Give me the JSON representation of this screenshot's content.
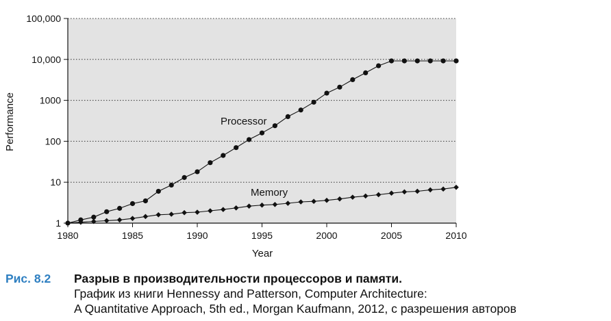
{
  "chart_data": {
    "type": "line",
    "ylabel": "Performance",
    "xlabel": "Year",
    "yscale": "log",
    "ylim": [
      1,
      100000
    ],
    "xlim": [
      1980,
      2010
    ],
    "x_ticks": [
      "1980",
      "1985",
      "1990",
      "1995",
      "2000",
      "2005",
      "2010"
    ],
    "y_ticks": [
      "1",
      "10",
      "100",
      "1000",
      "10,000",
      "100,000"
    ],
    "grid": "horizontal dotted",
    "background": "#e3e3e3",
    "series": [
      {
        "name": "Processor",
        "marker": "circle",
        "x": [
          1980,
          1981,
          1982,
          1983,
          1984,
          1985,
          1986,
          1987,
          1988,
          1989,
          1990,
          1991,
          1992,
          1993,
          1994,
          1995,
          1996,
          1997,
          1998,
          1999,
          2000,
          2001,
          2002,
          2003,
          2004,
          2005,
          2006,
          2007,
          2008,
          2009,
          2010
        ],
        "y": [
          1,
          1.2,
          1.4,
          1.9,
          2.3,
          3,
          3.5,
          6,
          8.5,
          13,
          18,
          30,
          45,
          70,
          110,
          160,
          240,
          400,
          580,
          900,
          1500,
          2100,
          3200,
          4700,
          7000,
          9200,
          9200,
          9200,
          9200,
          9200,
          9200
        ]
      },
      {
        "name": "Memory",
        "marker": "diamond",
        "x": [
          1980,
          1981,
          1982,
          1983,
          1984,
          1985,
          1986,
          1987,
          1988,
          1989,
          1990,
          1991,
          1992,
          1993,
          1994,
          1995,
          1996,
          1997,
          1998,
          1999,
          2000,
          2001,
          2002,
          2003,
          2004,
          2005,
          2006,
          2007,
          2008,
          2009,
          2010
        ],
        "y": [
          1,
          1.05,
          1.1,
          1.15,
          1.2,
          1.3,
          1.45,
          1.6,
          1.65,
          1.8,
          1.85,
          2,
          2.15,
          2.35,
          2.6,
          2.75,
          2.85,
          3.05,
          3.3,
          3.4,
          3.6,
          3.9,
          4.3,
          4.6,
          4.95,
          5.4,
          5.8,
          6,
          6.5,
          6.8,
          7.5
        ]
      }
    ]
  },
  "caption": {
    "number": "Рис. 8.2",
    "title": "Разрыв в производительности процессоров и памяти.",
    "line1": "График из книги Hennessy and Patterson, Computer Architecture:",
    "line2": "A Quantitative Approach, 5th ed., Morgan Kaufmann, 2012, с разрешения авторов"
  },
  "colors": {
    "plot_background": "#e3e3e3",
    "caption_number": "#2e7fc1",
    "line": "#111111"
  }
}
